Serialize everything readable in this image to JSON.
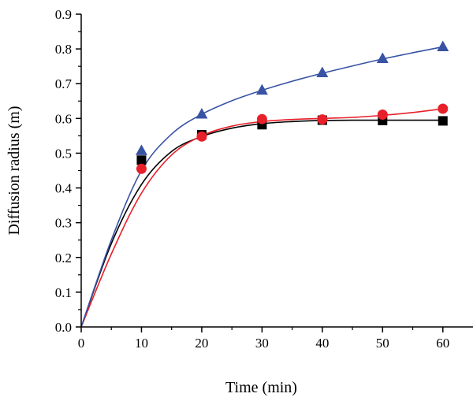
{
  "chart_data": {
    "type": "scatter",
    "xlabel": "Time (min)",
    "ylabel": "Diffusion radius (m)",
    "xlim": [
      0,
      65
    ],
    "ylim": [
      0,
      0.9
    ],
    "xticks": [
      0,
      10,
      20,
      30,
      40,
      50,
      60
    ],
    "yticks": [
      0.0,
      0.1,
      0.2,
      0.3,
      0.4,
      0.5,
      0.6,
      0.7,
      0.8,
      0.9
    ],
    "ytick_labels": [
      "0.0",
      "0.1",
      "0.2",
      "0.3",
      "0.4",
      "0.5",
      "0.6",
      "0.7",
      "0.8",
      "0.9"
    ],
    "grid": false,
    "legend": "none",
    "series": [
      {
        "marker": "square",
        "color": "#000000",
        "points": [
          [
            10,
            0.48
          ],
          [
            20,
            0.553
          ],
          [
            30,
            0.582
          ],
          [
            40,
            0.595
          ],
          [
            50,
            0.594
          ],
          [
            60,
            0.593
          ]
        ],
        "fit": [
          [
            0,
            0
          ],
          [
            5,
            0.24
          ],
          [
            10,
            0.41
          ],
          [
            15,
            0.505
          ],
          [
            20,
            0.548
          ],
          [
            25,
            0.572
          ],
          [
            30,
            0.585
          ],
          [
            35,
            0.591
          ],
          [
            40,
            0.594
          ],
          [
            45,
            0.595
          ],
          [
            50,
            0.595
          ],
          [
            55,
            0.595
          ],
          [
            60,
            0.595
          ]
        ]
      },
      {
        "marker": "circle",
        "color": "#e8202a",
        "points": [
          [
            10,
            0.455
          ],
          [
            20,
            0.548
          ],
          [
            30,
            0.598
          ],
          [
            40,
            0.597
          ],
          [
            50,
            0.611
          ],
          [
            60,
            0.628
          ]
        ],
        "fit": [
          [
            0,
            0
          ],
          [
            5,
            0.21
          ],
          [
            10,
            0.385
          ],
          [
            15,
            0.495
          ],
          [
            20,
            0.55
          ],
          [
            25,
            0.578
          ],
          [
            30,
            0.591
          ],
          [
            35,
            0.597
          ],
          [
            40,
            0.6
          ],
          [
            45,
            0.603
          ],
          [
            50,
            0.609
          ],
          [
            55,
            0.617
          ],
          [
            60,
            0.628
          ]
        ]
      },
      {
        "marker": "triangle",
        "color": "#3853a4",
        "points": [
          [
            10,
            0.507
          ],
          [
            20,
            0.612
          ],
          [
            30,
            0.681
          ],
          [
            40,
            0.731
          ],
          [
            50,
            0.772
          ],
          [
            60,
            0.806
          ]
        ],
        "fit": [
          [
            0,
            0
          ],
          [
            5,
            0.25
          ],
          [
            10,
            0.45
          ],
          [
            15,
            0.555
          ],
          [
            20,
            0.612
          ],
          [
            25,
            0.651
          ],
          [
            30,
            0.681
          ],
          [
            35,
            0.707
          ],
          [
            40,
            0.73
          ],
          [
            45,
            0.751
          ],
          [
            50,
            0.771
          ],
          [
            55,
            0.789
          ],
          [
            60,
            0.806
          ]
        ]
      }
    ]
  }
}
